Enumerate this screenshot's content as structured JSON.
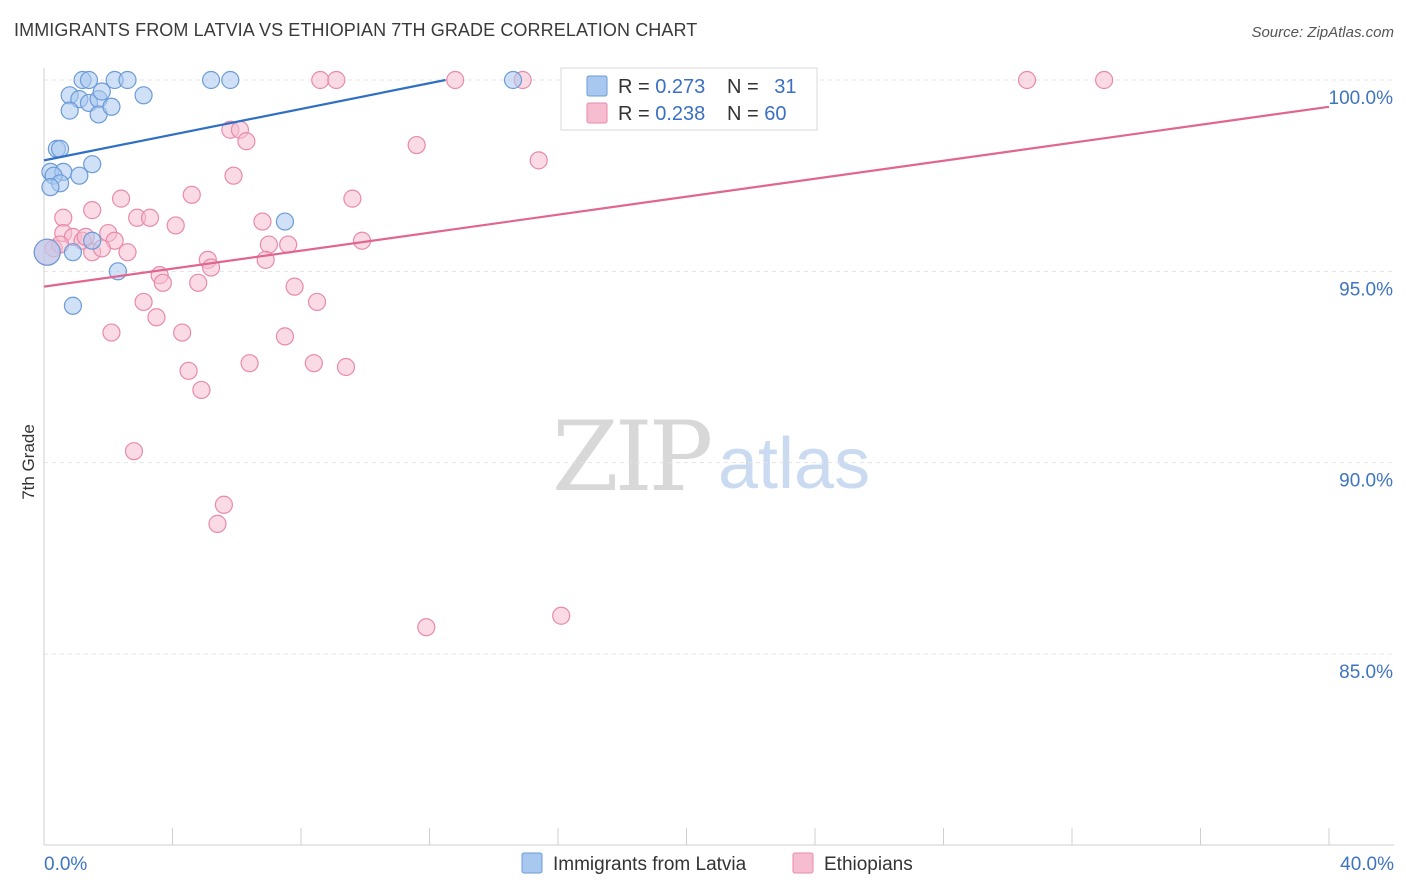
{
  "title": "IMMIGRANTS FROM LATVIA VS ETHIOPIAN 7TH GRADE CORRELATION CHART",
  "source": "Source: ZipAtlas.com",
  "watermark": {
    "zip": "ZIP",
    "atlas": "atlas"
  },
  "colors": {
    "blue_fill": "#a9c8f0",
    "blue_stroke": "#6b9bd8",
    "blue_line": "#2f6fc4",
    "pink_fill": "#f6bdd0",
    "pink_stroke": "#e88aa9",
    "pink_line": "#e06690",
    "tick_text": "#3f74c0",
    "grid": "#e3e3e3"
  },
  "legend_box": {
    "rows": [
      {
        "r_label": "R = ",
        "r_value": "0.273",
        "n_label": "N = ",
        "n_value": "31"
      },
      {
        "r_label": "R = ",
        "r_value": "0.238",
        "n_label": "N = ",
        "n_value": "60"
      }
    ]
  },
  "chart_data": {
    "type": "scatter",
    "title": "IMMIGRANTS FROM LATVIA VS ETHIOPIAN 7TH GRADE CORRELATION CHART",
    "xlabel": "",
    "ylabel": "7th Grade",
    "xlim": [
      0,
      40
    ],
    "ylim": [
      80.3,
      100.8
    ],
    "x_tick_labels": [
      "0.0%",
      "40.0%"
    ],
    "y_ticks": [
      85,
      90,
      95,
      100
    ],
    "y_tick_labels": [
      "85.0%",
      "90.0%",
      "95.0%",
      "100.0%"
    ],
    "grid": "horizontal dashed",
    "legend_position": "top-center",
    "series": [
      {
        "name": "Immigrants from Latvia",
        "color": "blue",
        "r": 0.273,
        "n": 31,
        "trend": {
          "x": [
            0.0,
            12.5
          ],
          "y": [
            97.9,
            100.0
          ]
        },
        "points": [
          [
            1.2,
            100.0
          ],
          [
            1.4,
            100.0
          ],
          [
            2.2,
            100.0
          ],
          [
            2.6,
            100.0
          ],
          [
            5.2,
            100.0
          ],
          [
            5.8,
            100.0
          ],
          [
            14.6,
            100.0
          ],
          [
            0.8,
            99.6
          ],
          [
            1.1,
            99.5
          ],
          [
            1.4,
            99.4
          ],
          [
            1.7,
            99.5
          ],
          [
            3.1,
            99.6
          ],
          [
            1.8,
            99.7
          ],
          [
            0.8,
            99.2
          ],
          [
            1.7,
            99.1
          ],
          [
            2.1,
            99.3
          ],
          [
            0.4,
            98.2
          ],
          [
            0.5,
            98.2
          ],
          [
            1.5,
            97.8
          ],
          [
            0.2,
            97.6
          ],
          [
            0.6,
            97.6
          ],
          [
            1.1,
            97.5
          ],
          [
            0.3,
            97.5
          ],
          [
            0.5,
            97.3
          ],
          [
            0.2,
            97.2
          ],
          [
            7.5,
            96.3
          ],
          [
            1.5,
            95.8
          ],
          [
            0.9,
            95.5
          ],
          [
            2.3,
            95.0
          ],
          [
            0.9,
            94.1
          ],
          [
            0.1,
            95.5
          ]
        ]
      },
      {
        "name": "Ethiopians",
        "color": "pink",
        "r": 0.238,
        "n": 60,
        "trend": {
          "x": [
            0.0,
            40.0
          ],
          "y": [
            94.6,
            99.3
          ]
        },
        "points": [
          [
            8.6,
            100.0
          ],
          [
            9.1,
            100.0
          ],
          [
            12.8,
            100.0
          ],
          [
            14.9,
            100.0
          ],
          [
            20.8,
            100.0
          ],
          [
            30.6,
            100.0
          ],
          [
            33.0,
            100.0
          ],
          [
            5.8,
            98.7
          ],
          [
            6.1,
            98.7
          ],
          [
            6.3,
            98.4
          ],
          [
            11.6,
            98.3
          ],
          [
            15.4,
            97.9
          ],
          [
            5.9,
            97.5
          ],
          [
            2.4,
            96.9
          ],
          [
            4.6,
            97.0
          ],
          [
            9.6,
            96.9
          ],
          [
            0.6,
            96.4
          ],
          [
            1.5,
            96.6
          ],
          [
            2.9,
            96.4
          ],
          [
            3.3,
            96.4
          ],
          [
            4.1,
            96.2
          ],
          [
            6.8,
            96.3
          ],
          [
            0.6,
            96.0
          ],
          [
            0.9,
            95.9
          ],
          [
            1.2,
            95.8
          ],
          [
            1.3,
            95.9
          ],
          [
            2.0,
            96.0
          ],
          [
            2.2,
            95.8
          ],
          [
            2.6,
            95.5
          ],
          [
            7.0,
            95.7
          ],
          [
            7.6,
            95.7
          ],
          [
            9.9,
            95.8
          ],
          [
            6.9,
            95.3
          ],
          [
            0.3,
            95.6
          ],
          [
            0.5,
            95.7
          ],
          [
            1.5,
            95.5
          ],
          [
            1.8,
            95.6
          ],
          [
            5.1,
            95.3
          ],
          [
            5.2,
            95.1
          ],
          [
            3.6,
            94.9
          ],
          [
            3.7,
            94.7
          ],
          [
            4.8,
            94.7
          ],
          [
            7.8,
            94.6
          ],
          [
            3.1,
            94.2
          ],
          [
            3.5,
            93.8
          ],
          [
            8.5,
            94.2
          ],
          [
            2.1,
            93.4
          ],
          [
            4.3,
            93.4
          ],
          [
            7.5,
            93.3
          ],
          [
            6.4,
            92.6
          ],
          [
            8.4,
            92.6
          ],
          [
            9.4,
            92.5
          ],
          [
            4.5,
            92.4
          ],
          [
            4.9,
            91.9
          ],
          [
            2.8,
            90.3
          ],
          [
            5.6,
            88.9
          ],
          [
            5.4,
            88.4
          ],
          [
            11.9,
            85.7
          ],
          [
            16.1,
            86.0
          ],
          [
            0.1,
            95.5
          ]
        ]
      }
    ]
  }
}
